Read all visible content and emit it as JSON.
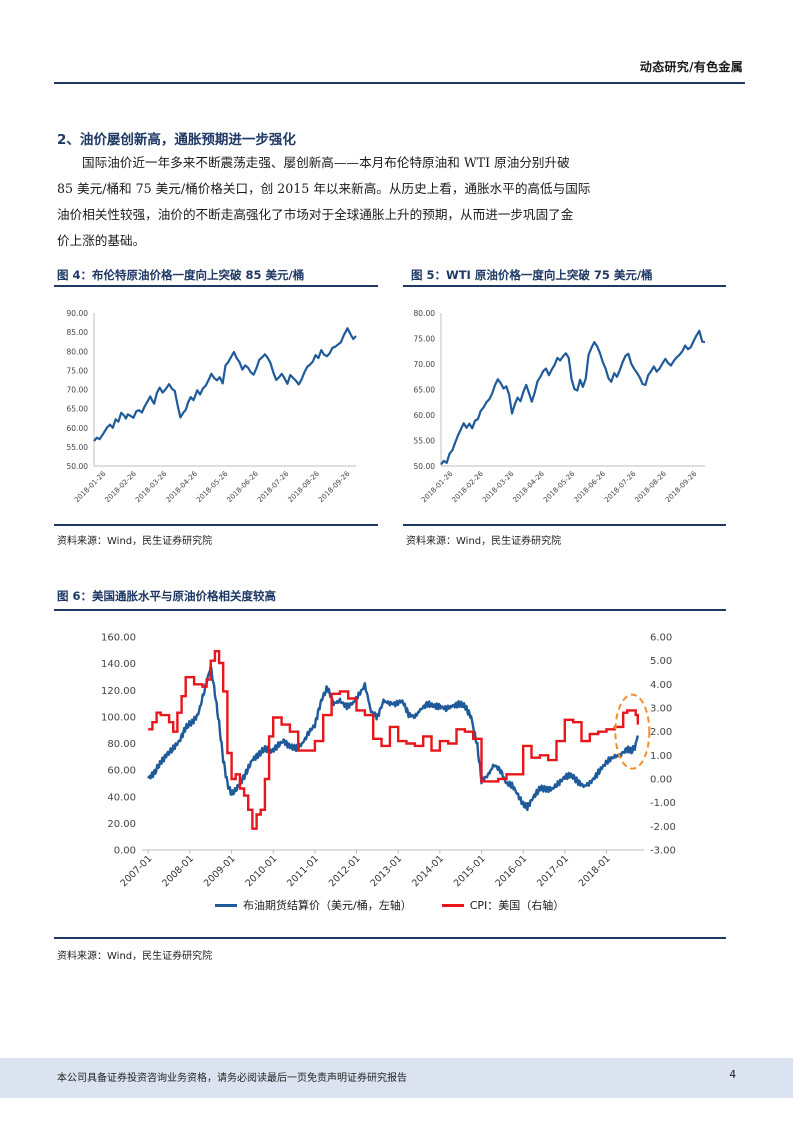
{
  "header": {
    "title": "动态研究/有色金属"
  },
  "section": {
    "title": "2、油价屡创新高，通胀预期进一步强化",
    "lines": [
      "国际油价近一年多来不断震荡走强、屡创新高——本月布伦特原油和 WTI 原油分别升破",
      "85 美元/桶和 75 美元/桶价格关口，创 2015 年以来新高。从历史上看，通胀水平的高低与国际",
      "油价相关性较强，油价的不断走高强化了市场对于全球通胀上升的预期，从而进一步巩固了金",
      "价上涨的基础。"
    ]
  },
  "figures": {
    "fig4": {
      "title": "图 4：布伦特原油价格一度向上突破 85 美元/桶",
      "source": "资料来源：Wind，民生证券研究院"
    },
    "fig5": {
      "title": "图 5：WTI 原油价格一度向上突破 75 美元/桶",
      "source": "资料来源：Wind，民生证券研究院"
    },
    "fig6": {
      "title": "图 6：美国通胀水平与原油价格相关度较高",
      "source": "资料来源：Wind，民生证券研究院",
      "legend": {
        "brent": "布油期货结算价（美元/桶，左轴）",
        "cpi": "CPI：美国（右轴）"
      }
    }
  },
  "footer": {
    "disclaimer": "本公司具备证券投资咨询业务资格，请务必阅读最后一页免责声明证券研究报告",
    "page": "4"
  },
  "chart_data": [
    {
      "id": "brent_2018",
      "type": "line",
      "color": "#1f5a9a",
      "ylim": [
        50,
        90
      ],
      "yticks": [
        "50.00",
        "55.00",
        "60.00",
        "65.00",
        "70.00",
        "75.00",
        "80.00",
        "85.00",
        "90.00"
      ],
      "xticks": [
        "2018-01-26",
        "2018-02-26",
        "2018-03-26",
        "2018-04-26",
        "2018-05-26",
        "2018-06-26",
        "2018-07-26",
        "2018-08-26",
        "2018-09-26"
      ],
      "series": [
        {
          "x": [
            0,
            3,
            6,
            10,
            14,
            17,
            20,
            23,
            26,
            29,
            32,
            34,
            36,
            39,
            42,
            45,
            48,
            51,
            54,
            57,
            60,
            62,
            64,
            67,
            70,
            73,
            76,
            80,
            83,
            86,
            89,
            92,
            95,
            98,
            100,
            103,
            106,
            110,
            113,
            116,
            119,
            122,
            125,
            128,
            131,
            134,
            137,
            140,
            143,
            146,
            149,
            152,
            155,
            158,
            161,
            164,
            167,
            170,
            173,
            176,
            179,
            182,
            185,
            188,
            191,
            194,
            197,
            200,
            203,
            206,
            209,
            212,
            215,
            218,
            221,
            224,
            227,
            230,
            233,
            236,
            239,
            242,
            245,
            248,
            251,
            254,
            257,
            260,
            263,
            266,
            270,
            273,
            276,
            279
          ],
          "y": [
            56.5,
            57.4,
            57.0,
            58.5,
            60.1,
            60.8,
            60.0,
            62.2,
            61.6,
            63.9,
            63.2,
            62.4,
            63.5,
            63.1,
            62.6,
            64.3,
            64.6,
            64.0,
            65.6,
            66.9,
            68.2,
            67.1,
            66.3,
            69.1,
            70.5,
            69.2,
            70.0,
            71.4,
            70.2,
            69.6,
            65.9,
            62.7,
            63.9,
            64.8,
            66.5,
            68.0,
            67.2,
            69.8,
            68.7,
            70.3,
            71.0,
            72.5,
            74.1,
            73.0,
            72.4,
            73.2,
            71.6,
            76.3,
            77.2,
            78.5,
            79.8,
            78.2,
            77.1,
            75.2,
            76.3,
            75.7,
            74.5,
            73.9,
            75.6,
            77.8,
            78.4,
            79.2,
            78.3,
            76.9,
            74.4,
            72.5,
            73.2,
            74.1,
            72.9,
            71.5,
            73.8,
            73.0,
            72.3,
            71.3,
            72.6,
            74.5,
            75.9,
            76.5,
            77.3,
            79.0,
            78.2,
            80.3,
            79.1,
            78.7,
            79.5,
            80.9,
            81.2,
            81.8,
            82.4,
            84.2,
            86.0,
            84.5,
            83.2,
            84.0
          ]
        }
      ]
    },
    {
      "id": "wti_2018",
      "type": "line",
      "color": "#1f5a9a",
      "ylim": [
        50,
        80
      ],
      "yticks": [
        "50.00",
        "55.00",
        "60.00",
        "65.00",
        "70.00",
        "75.00",
        "80.00"
      ],
      "xticks": [
        "2018-01-26",
        "2018-02-26",
        "2018-03-26",
        "2018-04-26",
        "2018-05-26",
        "2018-06-26",
        "2018-07-26",
        "2018-08-26",
        "2018-09-26"
      ],
      "series": [
        {
          "x": [
            0,
            3,
            6,
            9,
            12,
            15,
            18,
            21,
            24,
            27,
            30,
            33,
            36,
            39,
            42,
            45,
            48,
            51,
            54,
            57,
            60,
            63,
            66,
            69,
            72,
            75,
            78,
            81,
            84,
            87,
            90,
            93,
            96,
            99,
            102,
            105,
            108,
            111,
            114,
            117,
            120,
            123,
            126,
            129,
            132,
            135,
            138,
            141,
            144,
            147,
            150,
            153,
            156,
            159,
            162,
            165,
            168,
            171,
            174,
            177,
            180,
            183,
            186,
            189,
            192,
            195,
            198,
            201,
            204,
            207,
            210,
            213,
            216,
            219,
            222,
            225,
            228,
            231,
            234,
            237,
            240,
            243,
            246,
            249,
            252,
            255,
            258,
            261,
            264,
            267,
            270,
            273,
            276,
            279
          ],
          "y": [
            50.3,
            51.0,
            50.6,
            52.4,
            53.1,
            54.6,
            56.0,
            57.2,
            58.4,
            57.5,
            58.3,
            57.4,
            58.9,
            59.2,
            60.8,
            61.5,
            62.5,
            63.1,
            64.2,
            65.8,
            67.0,
            66.3,
            65.2,
            65.6,
            64.0,
            60.3,
            62.1,
            63.4,
            62.7,
            64.5,
            65.9,
            64.3,
            62.6,
            64.4,
            66.6,
            67.5,
            68.6,
            69.1,
            67.8,
            68.9,
            69.8,
            71.2,
            70.7,
            71.5,
            72.1,
            71.2,
            67.0,
            65.1,
            64.8,
            66.9,
            65.5,
            67.2,
            71.8,
            73.2,
            74.3,
            73.5,
            72.1,
            70.4,
            69.1,
            67.2,
            66.5,
            68.2,
            67.5,
            68.8,
            70.4,
            71.6,
            72.0,
            70.1,
            69.1,
            68.3,
            67.4,
            66.1,
            65.9,
            67.8,
            68.6,
            69.5,
            68.5,
            69.1,
            70.1,
            71.0,
            70.2,
            69.7,
            70.6,
            71.3,
            71.8,
            72.5,
            73.6,
            72.9,
            73.3,
            74.5,
            75.6,
            76.5,
            74.4,
            74.3
          ]
        }
      ]
    },
    {
      "id": "brent_vs_cpi",
      "type": "line",
      "xticks": [
        "2007-01",
        "2008-01",
        "2009-01",
        "2010-01",
        "2011-01",
        "2012-01",
        "2013-01",
        "2014-01",
        "2015-01",
        "2016-01",
        "2017-01",
        "2018-01"
      ],
      "ylim_left": [
        0,
        160
      ],
      "ylim_right": [
        -3,
        6
      ],
      "yticks_left": [
        "0.00",
        "20.00",
        "40.00",
        "60.00",
        "80.00",
        "100.00",
        "120.00",
        "140.00",
        "160.00"
      ],
      "yticks_right": [
        "-3.00",
        "-2.00",
        "-1.00",
        "0.00",
        "1.00",
        "2.00",
        "3.00",
        "4.00",
        "5.00",
        "6.00"
      ],
      "annotation": "dashed orange ellipse around latest values",
      "series": [
        {
          "name": "布油期货结算价（美元/桶，左轴）",
          "axis": "left",
          "color": "#1f5a9a",
          "x": [
            2007.0,
            2007.15,
            2007.3,
            2007.45,
            2007.6,
            2007.75,
            2007.9,
            2008.05,
            2008.2,
            2008.35,
            2008.5,
            2008.6,
            2008.7,
            2008.8,
            2008.9,
            2009.0,
            2009.1,
            2009.2,
            2009.35,
            2009.5,
            2009.65,
            2009.8,
            2009.95,
            2010.1,
            2010.25,
            2010.4,
            2010.55,
            2010.7,
            2010.85,
            2011.0,
            2011.15,
            2011.3,
            2011.45,
            2011.6,
            2011.75,
            2011.9,
            2012.05,
            2012.2,
            2012.35,
            2012.5,
            2012.65,
            2012.8,
            2012.95,
            2013.1,
            2013.25,
            2013.4,
            2013.55,
            2013.7,
            2013.85,
            2014.0,
            2014.15,
            2014.3,
            2014.45,
            2014.6,
            2014.75,
            2014.9,
            2015.0,
            2015.15,
            2015.3,
            2015.45,
            2015.6,
            2015.75,
            2015.9,
            2016.0,
            2016.1,
            2016.25,
            2016.4,
            2016.55,
            2016.7,
            2016.85,
            2017.0,
            2017.15,
            2017.3,
            2017.45,
            2017.6,
            2017.75,
            2017.9,
            2018.05,
            2018.2,
            2018.35,
            2018.5,
            2018.6,
            2018.7,
            2018.75
          ],
          "y": [
            54,
            58,
            66,
            72,
            76,
            82,
            92,
            96,
            102,
            120,
            138,
            118,
            95,
            68,
            50,
            42,
            45,
            50,
            58,
            68,
            72,
            76,
            74,
            78,
            82,
            78,
            76,
            80,
            88,
            94,
            112,
            122,
            110,
            112,
            108,
            110,
            116,
            124,
            104,
            100,
            112,
            110,
            110,
            112,
            102,
            100,
            106,
            110,
            108,
            108,
            106,
            108,
            110,
            108,
            100,
            78,
            52,
            56,
            64,
            60,
            50,
            48,
            40,
            34,
            32,
            40,
            46,
            46,
            46,
            50,
            55,
            56,
            52,
            48,
            50,
            56,
            62,
            68,
            70,
            72,
            76,
            74,
            78,
            86
          ]
        },
        {
          "name": "CPI：美国（右轴）",
          "axis": "right",
          "color": "#e8151b",
          "x": [
            2007.0,
            2007.1,
            2007.2,
            2007.3,
            2007.4,
            2007.5,
            2007.6,
            2007.7,
            2007.8,
            2007.9,
            2008.0,
            2008.1,
            2008.2,
            2008.3,
            2008.4,
            2008.5,
            2008.6,
            2008.7,
            2008.8,
            2008.9,
            2009.0,
            2009.1,
            2009.2,
            2009.3,
            2009.4,
            2009.5,
            2009.6,
            2009.7,
            2009.8,
            2009.9,
            2010.0,
            2010.2,
            2010.4,
            2010.6,
            2010.8,
            2011.0,
            2011.2,
            2011.4,
            2011.6,
            2011.8,
            2012.0,
            2012.2,
            2012.4,
            2012.6,
            2012.8,
            2013.0,
            2013.2,
            2013.4,
            2013.6,
            2013.8,
            2014.0,
            2014.2,
            2014.4,
            2014.6,
            2014.8,
            2015.0,
            2015.2,
            2015.4,
            2015.6,
            2015.8,
            2016.0,
            2016.2,
            2016.4,
            2016.6,
            2016.8,
            2017.0,
            2017.2,
            2017.4,
            2017.6,
            2017.8,
            2018.0,
            2018.2,
            2018.4,
            2018.5,
            2018.6,
            2018.7,
            2018.75
          ],
          "y": [
            2.1,
            2.4,
            2.8,
            2.7,
            2.7,
            2.4,
            2.0,
            2.8,
            3.5,
            4.3,
            4.3,
            4.0,
            4.0,
            3.9,
            4.2,
            5.0,
            5.4,
            4.9,
            3.7,
            1.1,
            0.0,
            0.2,
            -0.4,
            -0.7,
            -1.3,
            -2.1,
            -1.5,
            -1.3,
            0.0,
            1.8,
            2.6,
            2.3,
            2.0,
            1.2,
            1.2,
            1.6,
            2.7,
            3.6,
            3.7,
            3.4,
            2.9,
            2.7,
            1.7,
            1.4,
            2.2,
            1.6,
            1.5,
            1.4,
            1.8,
            1.2,
            1.6,
            1.5,
            2.1,
            2.0,
            1.7,
            -0.1,
            -0.1,
            0.0,
            0.2,
            0.2,
            1.4,
            0.9,
            1.0,
            0.8,
            1.6,
            2.5,
            2.4,
            1.6,
            1.9,
            2.0,
            2.1,
            2.2,
            2.8,
            2.9,
            2.9,
            2.7,
            2.3
          ]
        }
      ]
    }
  ]
}
